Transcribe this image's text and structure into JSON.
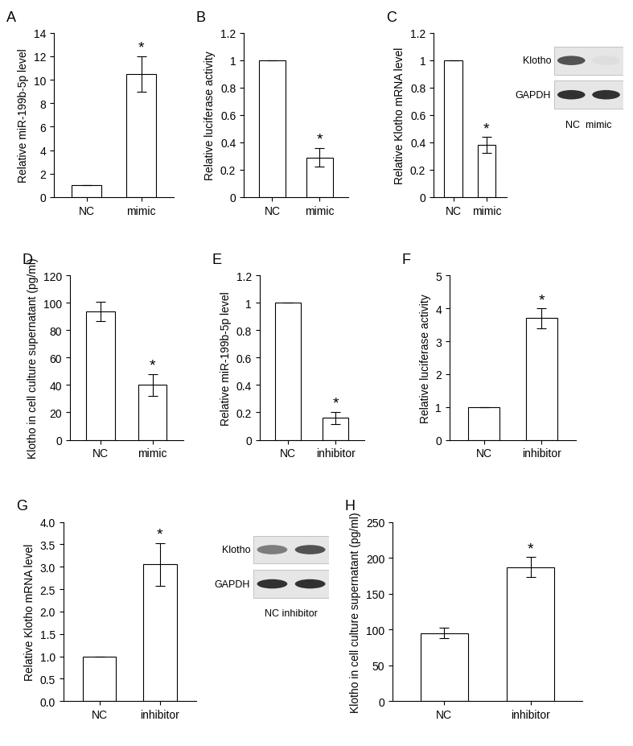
{
  "chart_data": [
    {
      "type": "bar",
      "panel": "A",
      "ylabel": "Relative miR-199b-5p level",
      "categories": [
        "NC",
        "mimic"
      ],
      "values": [
        1,
        10.5
      ],
      "errors": [
        0,
        1.5
      ],
      "color": "#ffffff",
      "ylim": [
        0,
        14
      ],
      "yticks": [
        0,
        2,
        4,
        6,
        8,
        10,
        12,
        14
      ],
      "annotations": [
        {
          "category": "mimic",
          "text": "*"
        }
      ]
    },
    {
      "type": "bar",
      "panel": "B",
      "ylabel": "Relative luciferase activity",
      "categories": [
        "NC",
        "mimic"
      ],
      "values": [
        1,
        0.29
      ],
      "errors": [
        0,
        0.07
      ],
      "color": "#ffffff",
      "ylim": [
        0,
        1.2
      ],
      "yticks": [
        0,
        0.2,
        0.4,
        0.6,
        0.8,
        1,
        1.2
      ],
      "annotations": [
        {
          "category": "mimic",
          "text": "*"
        }
      ]
    },
    {
      "type": "bar",
      "panel": "C",
      "ylabel": "Relative Klotho mRNA level",
      "categories": [
        "NC",
        "mimic"
      ],
      "values": [
        1,
        0.38
      ],
      "errors": [
        0,
        0.06
      ],
      "color": "#ffffff",
      "ylim": [
        0,
        1.2
      ],
      "yticks": [
        0,
        0.2,
        0.4,
        0.6,
        0.8,
        1,
        1.2
      ],
      "annotations": [
        {
          "category": "mimic",
          "text": "*"
        }
      ],
      "blot": {
        "rows": [
          "Klotho",
          "GAPDH"
        ],
        "lanes": "NC  mimic",
        "band_intensity": [
          [
            0.8,
            0.15
          ],
          [
            0.95,
            0.95
          ]
        ]
      }
    },
    {
      "type": "bar",
      "panel": "D",
      "ylabel": "Klotho in cell culture supernatant (pg/ml)",
      "categories": [
        "NC",
        "mimic"
      ],
      "values": [
        94,
        40
      ],
      "errors": [
        7,
        8
      ],
      "color": "#ffffff",
      "ylim": [
        0,
        120
      ],
      "yticks": [
        0,
        20,
        40,
        60,
        80,
        100,
        120
      ],
      "annotations": [
        {
          "category": "mimic",
          "text": "*"
        }
      ]
    },
    {
      "type": "bar",
      "panel": "E",
      "ylabel": "Relative miR-199b-5p level",
      "categories": [
        "NC",
        "inhibitor"
      ],
      "values": [
        1,
        0.16
      ],
      "errors": [
        0,
        0.045
      ],
      "color": "#ffffff",
      "ylim": [
        0,
        1.2
      ],
      "yticks": [
        0,
        0.2,
        0.4,
        0.6,
        0.8,
        1,
        1.2
      ],
      "annotations": [
        {
          "category": "inhibitor",
          "text": "*"
        }
      ]
    },
    {
      "type": "bar",
      "panel": "F",
      "ylabel": "Relative luciferase activity",
      "categories": [
        "NC",
        "inhibitor"
      ],
      "values": [
        1,
        3.7
      ],
      "errors": [
        0,
        0.3
      ],
      "color": "#ffffff",
      "ylim": [
        0,
        5
      ],
      "yticks": [
        0,
        1,
        2,
        3,
        4,
        5
      ],
      "annotations": [
        {
          "category": "inhibitor",
          "text": "*"
        }
      ]
    },
    {
      "type": "bar",
      "panel": "G",
      "ylabel": "Relative Klotho mRNA level",
      "categories": [
        "NC",
        "inhibitor"
      ],
      "values": [
        1,
        3.05
      ],
      "errors": [
        0,
        0.48
      ],
      "color": "#ffffff",
      "ylim": [
        0,
        4
      ],
      "yticks": [
        {
          "value": 0,
          "label": "0.0"
        },
        0.5,
        {
          "value": 1,
          "label": "1.0"
        },
        1.5,
        {
          "value": 2,
          "label": "2.0"
        },
        2.5,
        {
          "value": 3,
          "label": "3.0"
        },
        3.5,
        {
          "value": 4,
          "label": "4.0"
        }
      ],
      "annotations": [
        {
          "category": "inhibitor",
          "text": "*"
        }
      ],
      "blot": {
        "rows": [
          "Klotho",
          "GAPDH"
        ],
        "lanes": "NC inhibitor",
        "band_intensity": [
          [
            0.6,
            0.8
          ],
          [
            0.95,
            0.95
          ]
        ]
      }
    },
    {
      "type": "bar",
      "panel": "H",
      "ylabel": "Klotho in cell culture supernatant (pg/ml)",
      "categories": [
        "NC",
        "inhibitor"
      ],
      "values": [
        95,
        187
      ],
      "errors": [
        7,
        14
      ],
      "color": "#ffffff",
      "ylim": [
        0,
        250
      ],
      "yticks": [
        0,
        50,
        100,
        150,
        200,
        250
      ],
      "annotations": [
        {
          "category": "inhibitor",
          "text": "*"
        }
      ]
    }
  ]
}
